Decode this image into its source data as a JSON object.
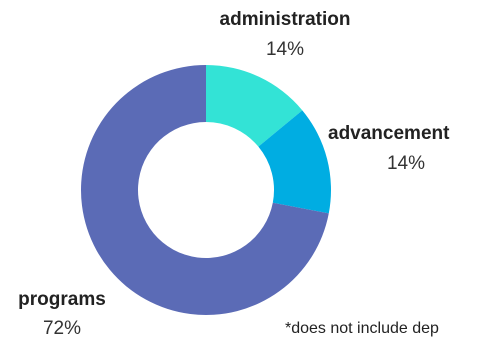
{
  "chart_data": {
    "type": "pie",
    "donut": true,
    "start": "top",
    "direction": "clockwise",
    "slices": [
      {
        "label": "administration",
        "percent_label": "14%",
        "value": 14,
        "color": "#33e3d6"
      },
      {
        "label": "advancement",
        "percent_label": "14%",
        "value": 14,
        "color": "#00ade2"
      },
      {
        "label": "programs",
        "percent_label": "72%",
        "value": 72,
        "color": "#5b6bb6"
      }
    ],
    "footnote": "*does not include dep"
  }
}
